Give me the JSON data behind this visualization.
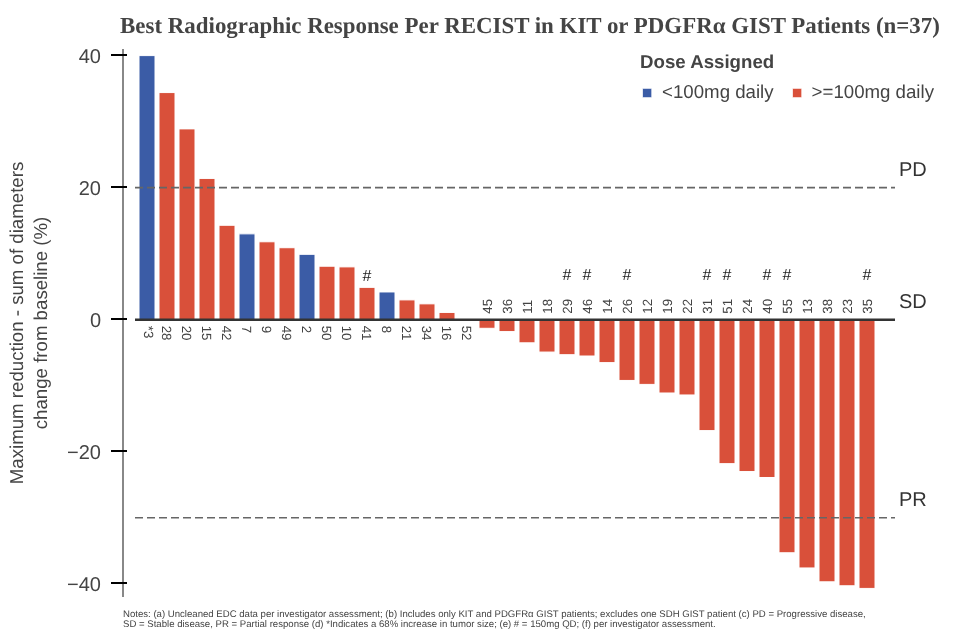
{
  "chart_data": {
    "type": "bar",
    "title": "Best Radiographic Response Per RECIST in KIT or PDGFRα GIST Patients (n=37)",
    "ylabel": "Maximum reduction - sum of diameters\nchange from baseline (%)",
    "legend_title": "Dose Assigned",
    "categories": [
      "*3",
      "28",
      "20",
      "15",
      "42",
      "7",
      "9",
      "49",
      "2",
      "50",
      "10",
      "41",
      "8",
      "21",
      "34",
      "16",
      "52",
      "45",
      "36",
      "11",
      "18",
      "29",
      "46",
      "14",
      "26",
      "12",
      "19",
      "22",
      "31",
      "51",
      "24",
      "40",
      "55",
      "13",
      "38",
      "23",
      "35"
    ],
    "series": [
      {
        "name": "<100mg daily",
        "color": "#3b5ca6",
        "values": [
          40,
          null,
          null,
          null,
          null,
          13.0,
          null,
          null,
          9.9,
          null,
          null,
          null,
          4.2,
          null,
          null,
          null,
          null,
          null,
          null,
          null,
          null,
          null,
          null,
          null,
          null,
          null,
          null,
          null,
          null,
          null,
          null,
          null,
          null,
          null,
          null,
          null,
          null
        ]
      },
      {
        "name": ">=100mg daily",
        "color": "#d9503a",
        "values": [
          null,
          34.4,
          28.9,
          21.4,
          14.3,
          null,
          11.8,
          10.9,
          null,
          8.1,
          8.0,
          4.9,
          null,
          3.0,
          2.4,
          1.1,
          null,
          -1.3,
          -1.8,
          -3.5,
          -4.9,
          -5.3,
          -5.5,
          -6.5,
          -9.2,
          -9.8,
          -11.1,
          -11.4,
          -16.8,
          -21.8,
          -23.0,
          -23.9,
          -35.3,
          -37.6,
          -39.7,
          -40.3,
          -40.7
        ]
      }
    ],
    "ylim": [
      -42,
      41
    ],
    "yticks": [
      -40,
      -20,
      0,
      20,
      40
    ],
    "ref_lines": [
      {
        "axis": "y",
        "value": 20,
        "label": "PD",
        "line_style": "dashed"
      },
      {
        "axis": "y",
        "value": -30,
        "label": "PR",
        "line_style": "dashed"
      }
    ],
    "annotations": [
      "SD",
      {
        "text": "#",
        "x": "41",
        "y": 4.9
      },
      {
        "text": "#",
        "x": "29",
        "y": 0
      },
      {
        "text": "#",
        "x": "46",
        "y": 0
      },
      {
        "text": "#",
        "x": "26",
        "y": 0
      },
      {
        "text": "#",
        "x": "31",
        "y": 0
      },
      {
        "text": "#",
        "x": "51",
        "y": 0
      },
      {
        "text": "#",
        "x": "40",
        "y": 0
      },
      {
        "text": "#",
        "x": "55",
        "y": 0
      },
      {
        "text": "#",
        "x": "35",
        "y": 0
      },
      "Notes: (a) Uncleaned EDC data per investigator assessment; (b) Includes only KIT and PDGFRα GIST patients; excludes one SDH GIST patient (c) PD = Progressive disease,\nSD = Stable disease, PR = Partial response (d) *Indicates a 68% increase in tumor size; (e) # = 150mg QD; (f) per investigator assessment."
    ],
    "grid": false,
    "legend": "top right"
  }
}
